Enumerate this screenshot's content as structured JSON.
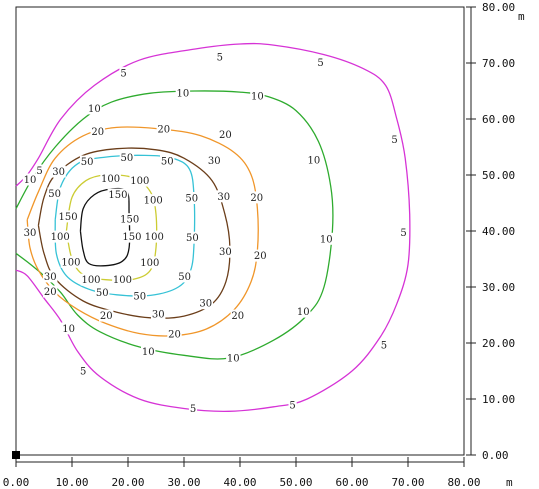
{
  "chart_data": {
    "type": "contour",
    "title": "",
    "xlabel": "",
    "ylabel": "",
    "x_unit": "m",
    "y_unit": "m",
    "xlim": [
      0,
      80
    ],
    "ylim": [
      0,
      80
    ],
    "x_ticks": [
      0,
      10,
      20,
      30,
      40,
      50,
      60,
      70,
      80
    ],
    "y_ticks": [
      0,
      10,
      20,
      30,
      40,
      50,
      60,
      70,
      80
    ],
    "x_tick_labels": [
      "0.00",
      "10.00",
      "20.00",
      "30.00",
      "40.00",
      "50.00",
      "60.00",
      "70.00",
      "80.00"
    ],
    "y_tick_labels": [
      "0.00",
      "10.00",
      "20.00",
      "30.00",
      "40.00",
      "50.00",
      "60.00",
      "70.00",
      "80.00"
    ],
    "levels": [
      {
        "value": 5,
        "label": "5",
        "color": "#d633d6",
        "points": [
          [
            0,
            48
          ],
          [
            2,
            50
          ],
          [
            4,
            53
          ],
          [
            8,
            60
          ],
          [
            14,
            66
          ],
          [
            22,
            70.5
          ],
          [
            32,
            72.5
          ],
          [
            40,
            73.4
          ],
          [
            46,
            73.2
          ],
          [
            55,
            71.5
          ],
          [
            62,
            69
          ],
          [
            66,
            66
          ],
          [
            68,
            60
          ],
          [
            69.5,
            53
          ],
          [
            70.3,
            43
          ],
          [
            70,
            34
          ],
          [
            68,
            27
          ],
          [
            65,
            21
          ],
          [
            60,
            15
          ],
          [
            52,
            10
          ],
          [
            46,
            8.6
          ],
          [
            38,
            7.8
          ],
          [
            30,
            8.3
          ],
          [
            22,
            10
          ],
          [
            15,
            14
          ],
          [
            11,
            18.5
          ],
          [
            8,
            24
          ],
          [
            5,
            28
          ],
          [
            2,
            32
          ],
          [
            0,
            33
          ]
        ],
        "label_positions": [
          [
            36.4,
            71.1
          ],
          [
            54.4,
            70.1
          ],
          [
            19.2,
            68.2
          ],
          [
            67.6,
            56.3
          ],
          [
            4.2,
            50.8
          ],
          [
            69.2,
            39.7
          ],
          [
            65.7,
            19.6
          ],
          [
            12,
            15
          ],
          [
            49.4,
            8.9
          ],
          [
            31.6,
            8.3
          ]
        ]
      },
      {
        "value": 10,
        "label": "10",
        "color": "#2eab2e",
        "points": [
          [
            0,
            44
          ],
          [
            3,
            49.5
          ],
          [
            7,
            55
          ],
          [
            12,
            60
          ],
          [
            17,
            63
          ],
          [
            24,
            64.6
          ],
          [
            32,
            65
          ],
          [
            40,
            64.8
          ],
          [
            45,
            64
          ],
          [
            50,
            61.5
          ],
          [
            54,
            56
          ],
          [
            56.2,
            48
          ],
          [
            56.5,
            40
          ],
          [
            55,
            30
          ],
          [
            52,
            25
          ],
          [
            46,
            20.5
          ],
          [
            38,
            17.3
          ],
          [
            30,
            17.8
          ],
          [
            22,
            19.3
          ],
          [
            15,
            22
          ],
          [
            11,
            25
          ],
          [
            8,
            29
          ],
          [
            5,
            32
          ],
          [
            2,
            34.5
          ],
          [
            0,
            36
          ]
        ],
        "label_positions": [
          [
            29.8,
            64.6
          ],
          [
            43.1,
            64.1
          ],
          [
            14,
            61.9
          ],
          [
            53.2,
            52.7
          ],
          [
            2.5,
            49.2
          ],
          [
            55.4,
            38.6
          ],
          [
            51.3,
            25.6
          ],
          [
            9.4,
            22.6
          ],
          [
            23.6,
            18.5
          ],
          [
            38.8,
            17.3
          ]
        ]
      },
      {
        "value": 20,
        "label": "20",
        "color": "#f0962a",
        "points": [
          [
            2,
            42
          ],
          [
            4,
            47
          ],
          [
            7,
            53
          ],
          [
            12,
            57
          ],
          [
            18,
            58.5
          ],
          [
            26,
            58.2
          ],
          [
            33,
            57
          ],
          [
            39,
            54
          ],
          [
            42,
            50
          ],
          [
            43.1,
            44
          ],
          [
            43.1,
            36.5
          ],
          [
            42,
            31
          ],
          [
            39,
            26
          ],
          [
            34,
            22.5
          ],
          [
            28,
            21.3
          ],
          [
            22,
            21.7
          ],
          [
            16,
            23.5
          ],
          [
            11,
            26
          ],
          [
            7,
            29
          ],
          [
            4,
            33
          ],
          [
            2.5,
            37
          ],
          [
            2,
            42
          ]
        ],
        "label_positions": [
          [
            14.6,
            57.8
          ],
          [
            26.4,
            58.2
          ],
          [
            37.4,
            57.2
          ],
          [
            43,
            46
          ],
          [
            43.6,
            35.6
          ],
          [
            39.6,
            24.9
          ],
          [
            28.3,
            21.6
          ],
          [
            16.1,
            24.9
          ],
          [
            6.1,
            29.2
          ]
        ]
      },
      {
        "value": 30,
        "label": "30",
        "color": "#6b3e1a",
        "points": [
          [
            4,
            41
          ],
          [
            5,
            46
          ],
          [
            7,
            50
          ],
          [
            12,
            53.5
          ],
          [
            18,
            54.7
          ],
          [
            25,
            54.5
          ],
          [
            30,
            53
          ],
          [
            35,
            49
          ],
          [
            37.3,
            43
          ],
          [
            38.2,
            37
          ],
          [
            37.5,
            31
          ],
          [
            35,
            27
          ],
          [
            30,
            24.8
          ],
          [
            24,
            24.5
          ],
          [
            18,
            25.5
          ],
          [
            12,
            27.5
          ],
          [
            7,
            31.5
          ],
          [
            5,
            36
          ],
          [
            4,
            41
          ]
        ],
        "label_positions": [
          [
            35.4,
            52.6
          ],
          [
            7.6,
            50.6
          ],
          [
            37.1,
            46.2
          ],
          [
            37.4,
            36.3
          ],
          [
            33.9,
            27.1
          ],
          [
            25.4,
            25.2
          ],
          [
            2.5,
            39.7
          ],
          [
            6.1,
            31.9
          ]
        ]
      },
      {
        "value": 50,
        "label": "50",
        "color": "#36c2d6",
        "points": [
          [
            7,
            42
          ],
          [
            8,
            48
          ],
          [
            11,
            52
          ],
          [
            16,
            53.2
          ],
          [
            23,
            53.5
          ],
          [
            28,
            53
          ],
          [
            31,
            51
          ],
          [
            31.8,
            46
          ],
          [
            31.8,
            38
          ],
          [
            31.2,
            33
          ],
          [
            29,
            30
          ],
          [
            24,
            28.5
          ],
          [
            18,
            28.6
          ],
          [
            13,
            29.6
          ],
          [
            9,
            32
          ],
          [
            7.2,
            36
          ],
          [
            7,
            42
          ]
        ],
        "label_positions": [
          [
            12.7,
            52.4
          ],
          [
            19.8,
            53.1
          ],
          [
            27,
            52.5
          ],
          [
            6.9,
            46.7
          ],
          [
            31.4,
            45.9
          ],
          [
            31.5,
            38.8
          ],
          [
            30.1,
            31.9
          ],
          [
            22.1,
            28.4
          ],
          [
            15.4,
            29
          ]
        ]
      },
      {
        "value": 100,
        "label": "100",
        "color": "#cccc33",
        "points": [
          [
            9,
            40
          ],
          [
            10,
            46
          ],
          [
            12.5,
            49
          ],
          [
            16,
            50
          ],
          [
            21,
            49.5
          ],
          [
            24,
            47
          ],
          [
            25,
            43
          ],
          [
            25,
            37
          ],
          [
            24,
            33
          ],
          [
            21,
            31.4
          ],
          [
            16,
            31.3
          ],
          [
            12,
            32.2
          ],
          [
            10,
            35
          ],
          [
            9,
            40
          ]
        ],
        "label_positions": [
          [
            16.9,
            49.4
          ],
          [
            22.1,
            49
          ],
          [
            24.5,
            45.5
          ],
          [
            7.9,
            39
          ],
          [
            24.7,
            39
          ],
          [
            23.9,
            34.4
          ],
          [
            9.8,
            34.5
          ],
          [
            13.4,
            31.3
          ],
          [
            19,
            31.3
          ]
        ]
      },
      {
        "value": 150,
        "label": "150",
        "color": "#111111",
        "points": [
          [
            11.5,
            40
          ],
          [
            12,
            44
          ],
          [
            14,
            46.5
          ],
          [
            17,
            47.5
          ],
          [
            19.8,
            47
          ],
          [
            20.2,
            43
          ],
          [
            20.2,
            37
          ],
          [
            19,
            34.6
          ],
          [
            16,
            33.8
          ],
          [
            13,
            34.2
          ],
          [
            12,
            36.5
          ],
          [
            11.5,
            40
          ]
        ],
        "label_positions": [
          [
            18.2,
            46.5
          ],
          [
            9.3,
            42.6
          ],
          [
            20.3,
            42.1
          ],
          [
            20.7,
            39
          ]
        ]
      }
    ]
  }
}
